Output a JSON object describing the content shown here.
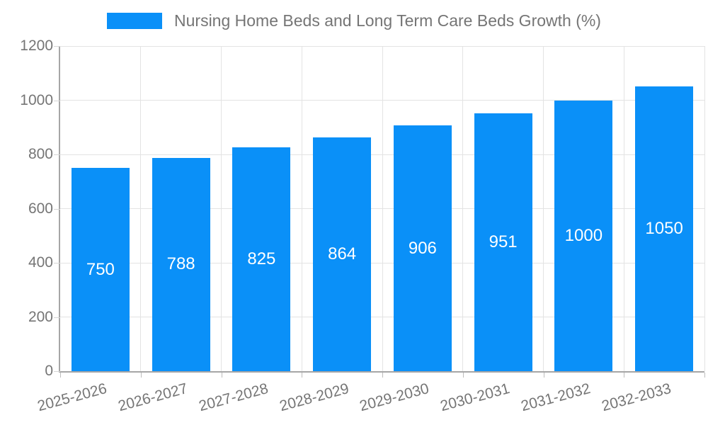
{
  "legend": {
    "label": "Nursing Home Beds and Long Term Care Beds Growth (%)"
  },
  "chart_data": {
    "type": "bar",
    "title": "Nursing Home Beds and Long Term Care Beds Growth (%)",
    "series_name": "Nursing Home Beds and Long Term Care Beds Growth (%)",
    "categories": [
      "2025-2026",
      "2026-2027",
      "2027-2028",
      "2028-2029",
      "2029-2030",
      "2030-2031",
      "2031-2032",
      "2032-2033"
    ],
    "values": [
      750,
      788,
      825,
      864,
      906,
      951,
      1000,
      1050
    ],
    "bar_labels": [
      "750",
      "788",
      "825",
      "864",
      "906",
      "951",
      "1000",
      "1050"
    ],
    "xlabel": "",
    "ylabel": "",
    "ylim": [
      0,
      1200
    ],
    "y_ticks": [
      0,
      200,
      400,
      600,
      800,
      1000,
      1200
    ],
    "grid": true,
    "legend_position": "top",
    "colors": {
      "bar": "#0a90f8",
      "bar_value_text": "#ffffff",
      "axis_text": "#757575",
      "gridline": "#e3e3e3",
      "axis_line": "#a6a6a6"
    }
  }
}
